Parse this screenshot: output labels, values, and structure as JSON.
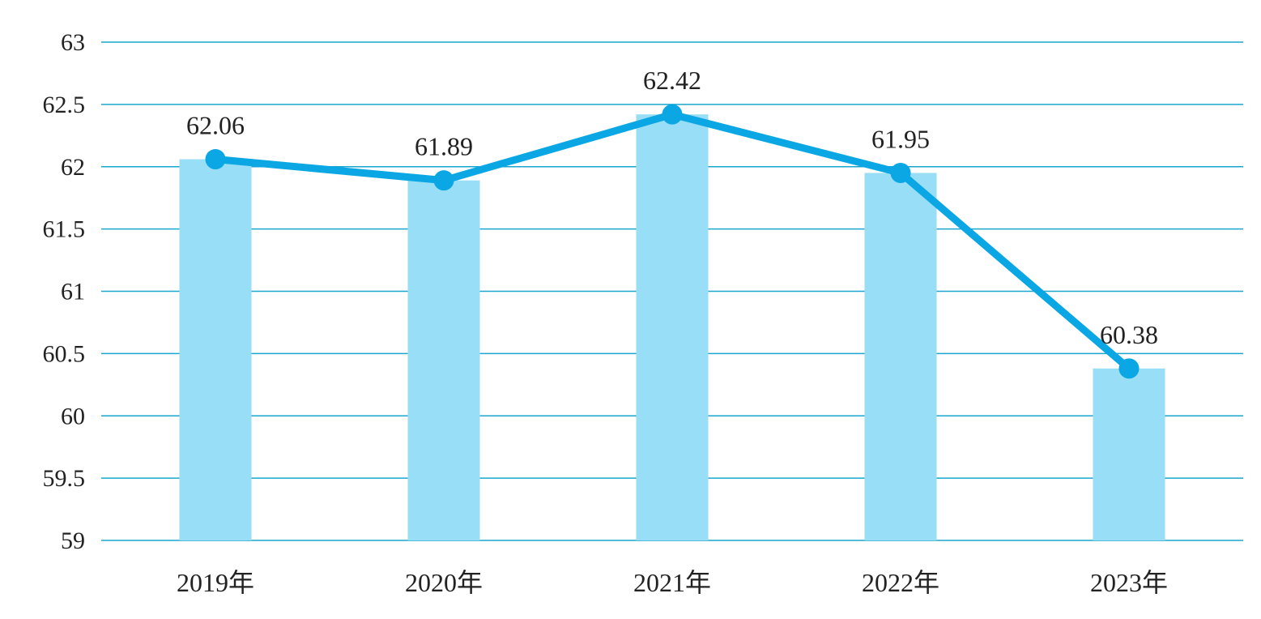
{
  "chart_data": {
    "type": "bar",
    "categories": [
      "2019年",
      "2020年",
      "2021年",
      "2022年",
      "2023年"
    ],
    "series": [
      {
        "type": "bar",
        "values": [
          62.06,
          61.89,
          62.42,
          61.95,
          60.38
        ]
      },
      {
        "type": "line",
        "values": [
          62.06,
          61.89,
          62.42,
          61.95,
          60.38
        ]
      }
    ],
    "data_labels": [
      "62.06",
      "61.89",
      "62.42",
      "61.95",
      "60.38"
    ],
    "y_ticks": [
      "59",
      "59.5",
      "60",
      "60.5",
      "61",
      "61.5",
      "62",
      "62.5",
      "63"
    ],
    "ylim": [
      59,
      63
    ],
    "grid": true,
    "title": "",
    "xlabel": "",
    "ylabel": "",
    "colors": {
      "bar": "#99def7",
      "line": "#0aa7e4",
      "grid": "#1aa6cf"
    }
  }
}
